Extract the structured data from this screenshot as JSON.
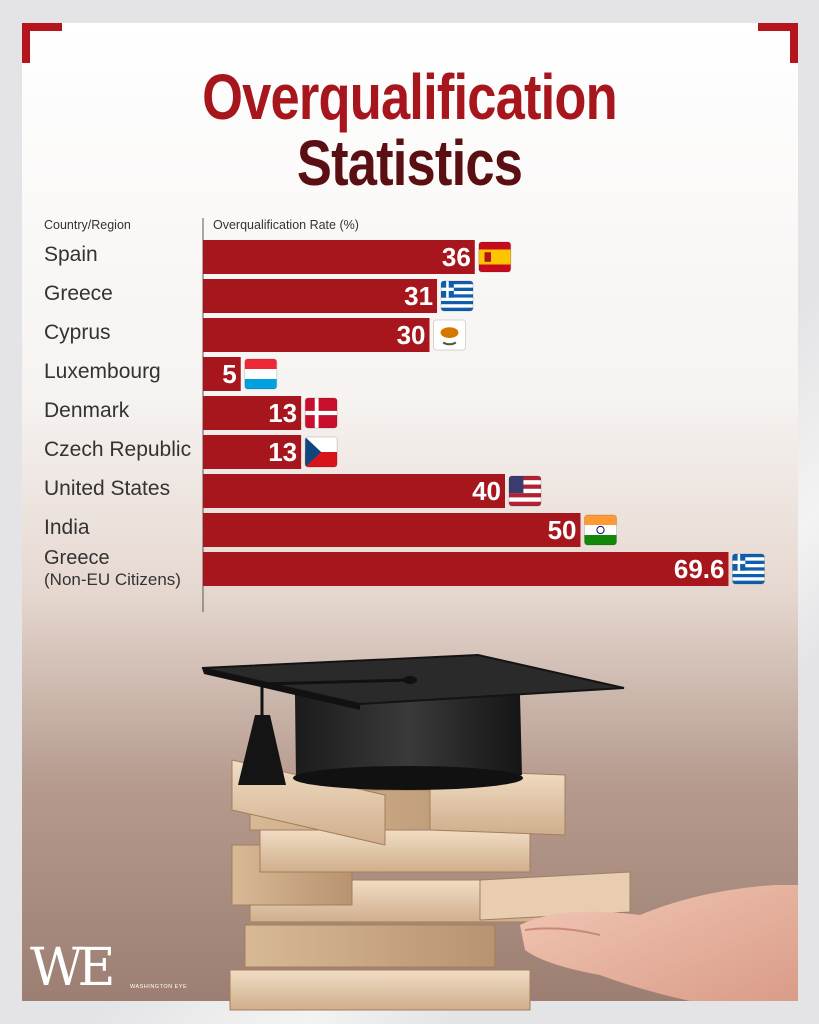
{
  "title_line1": "Overqualification",
  "title_line2": "Statistics",
  "chart_data": {
    "type": "bar",
    "orientation": "horizontal",
    "category_header": "Country/Region",
    "value_header": "Overqualification Rate (%)",
    "categories": [
      "Spain",
      "Greece",
      "Cyprus",
      "Luxembourg",
      "Denmark",
      "Czech Republic",
      "United States",
      "India",
      "Greece (Non-EU Citizens)"
    ],
    "category_lines": [
      [
        "Spain"
      ],
      [
        "Greece"
      ],
      [
        "Cyprus"
      ],
      [
        "Luxembourg"
      ],
      [
        "Denmark"
      ],
      [
        "Czech Republic"
      ],
      [
        "United States"
      ],
      [
        "India"
      ],
      [
        "Greece",
        "(Non-EU Citizens)"
      ]
    ],
    "values": [
      36,
      31,
      30,
      5,
      13,
      13,
      40,
      50,
      69.6
    ],
    "value_labels": [
      "36",
      "31",
      "30",
      "5",
      "13",
      "13",
      "40",
      "50",
      "69.6"
    ],
    "flags": [
      "spain-flag-icon",
      "greece-flag-icon",
      "cyprus-flag-icon",
      "luxembourg-flag-icon",
      "denmark-flag-icon",
      "czech-republic-flag-icon",
      "united-states-flag-icon",
      "india-flag-icon",
      "greece-flag-icon"
    ],
    "bar_color": "#a8161d"
  },
  "logo": {
    "mark": "WE",
    "text": "WASHINGTON EYE"
  },
  "colors": {
    "title_red": "#a8161d",
    "title_dark": "#5a1013",
    "accent": "#b7151d"
  }
}
